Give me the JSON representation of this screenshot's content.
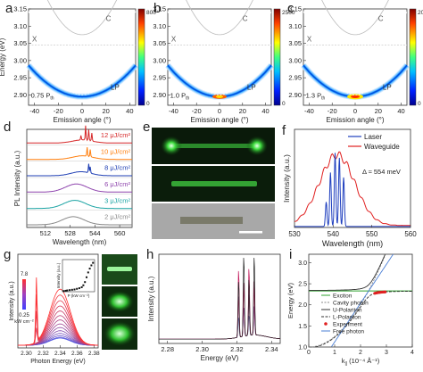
{
  "panel_labels": [
    "a",
    "b",
    "c",
    "d",
    "e",
    "f",
    "g",
    "h",
    "i"
  ],
  "chart_data": [
    {
      "panel": "a",
      "type": "heatmap",
      "xlabel": "Emission angle (°)",
      "ylabel": "Energy (eV)",
      "xticks": [
        "-40",
        "-20",
        "0",
        "20",
        "40"
      ],
      "yticks": [
        "2.90",
        "2.95",
        "3.00",
        "3.05",
        "3.10",
        "3.15"
      ],
      "xlim": [
        -45,
        45
      ],
      "ylim": [
        2.87,
        3.15
      ],
      "colorbar_ticks": [
        "800",
        "0"
      ],
      "colorbar_max": 800,
      "annotations": {
        "power": "0.75 P",
        "power_sub": "th",
        "C": "C",
        "X": "X",
        "LP": "LP"
      },
      "lp_curve": {
        "E0": 2.895,
        "curv": 4.5e-05
      }
    },
    {
      "panel": "b",
      "type": "heatmap",
      "xlabel": "Emission angle (°)",
      "ylabel": "",
      "xticks": [
        "-40",
        "-20",
        "0",
        "20",
        "40"
      ],
      "yticks": [
        "2.90",
        "2.95",
        "3.00",
        "3.05",
        "3.10",
        "3.15"
      ],
      "xlim": [
        -45,
        45
      ],
      "ylim": [
        2.87,
        3.15
      ],
      "colorbar_ticks": [
        "2500",
        "0"
      ],
      "colorbar_max": 2500,
      "annotations": {
        "power": "1.0 P",
        "power_sub": "th",
        "C": "C",
        "X": "X",
        "LP": "LP"
      },
      "lp_curve": {
        "E0": 2.895,
        "curv": 4.5e-05
      }
    },
    {
      "panel": "c",
      "type": "heatmap",
      "xlabel": "Emission angle (°)",
      "ylabel": "",
      "xticks": [
        "-40",
        "-20",
        "0",
        "20",
        "40"
      ],
      "yticks": [
        "2.90",
        "2.95",
        "3.00",
        "3.05",
        "3.10",
        "3.15"
      ],
      "xlim": [
        -45,
        45
      ],
      "ylim": [
        2.87,
        3.15
      ],
      "colorbar_ticks": [
        "20000",
        "0"
      ],
      "colorbar_max": 20000,
      "annotations": {
        "power": "1.3 P",
        "power_sub": "th",
        "C": "C",
        "X": "X",
        "LP": "LP"
      },
      "lp_curve": {
        "E0": 2.895,
        "curv": 4.5e-05
      }
    },
    {
      "panel": "d",
      "type": "line",
      "xlabel": "Wavelength (nm)",
      "ylabel": "PL Intensity (a.u.)",
      "xticks": [
        "512",
        "528",
        "544",
        "560"
      ],
      "xlim": [
        500,
        568
      ],
      "series": [
        {
          "name": "12 μJ/cm²",
          "color": "#d62728",
          "center": 536,
          "width": 9,
          "amp": 0.35,
          "spikes": [
            [
              538,
              1.6
            ],
            [
              540,
              1.2
            ],
            [
              542,
              0.9
            ],
            [
              535,
              0.5
            ]
          ]
        },
        {
          "name": "10 μJ/cm²",
          "color": "#ff7f0e",
          "center": 536,
          "width": 9,
          "amp": 0.4,
          "spikes": [
            [
              539,
              1.0
            ],
            [
              541,
              0.8
            ]
          ]
        },
        {
          "name": "8 μJ/cm²",
          "color": "#1f3fb4",
          "center": 535,
          "width": 9,
          "amp": 0.45,
          "spikes": [
            [
              540,
              1.0
            ],
            [
              541,
              0.7
            ]
          ]
        },
        {
          "name": "6 μJ/cm²",
          "color": "#8e44ad",
          "center": 532,
          "width": 10,
          "amp": 0.9,
          "spikes": []
        },
        {
          "name": "3 μJ/cm²",
          "color": "#1aa3a3",
          "center": 531,
          "width": 10,
          "amp": 0.9,
          "spikes": []
        },
        {
          "name": "2 μJ/cm²",
          "color": "#888888",
          "center": 530,
          "width": 10,
          "amp": 0.9,
          "spikes": []
        }
      ]
    },
    {
      "panel": "e",
      "type": "image",
      "description_free": true
    },
    {
      "panel": "f",
      "type": "line",
      "xlabel": "Wavelength (nm)",
      "ylabel": "Intensity (a.u.)",
      "xticks": [
        "530",
        "540",
        "550",
        "560"
      ],
      "xlim": [
        530,
        560
      ],
      "legend": [
        "Laser",
        "Waveguide"
      ],
      "legend_position": "top-right",
      "annotation": "Δ ≈ 554 meV",
      "series": [
        {
          "name": "Laser",
          "color": "#1f3fbf",
          "peaks": [
            [
              539.3,
              0.55
            ],
            [
              540.5,
              0.75
            ],
            [
              541.6,
              0.7
            ],
            [
              542.7,
              0.5
            ],
            [
              538.2,
              0.25
            ]
          ]
        },
        {
          "name": "Waveguide",
          "color": "#e02020",
          "center": 541,
          "width": 6.5,
          "amp": 0.72
        }
      ]
    },
    {
      "panel": "g",
      "type": "line",
      "xlabel": "Photon Energy (eV)",
      "ylabel": "Intensity (a.u.)",
      "xticks": [
        "2.30",
        "2.32",
        "2.34",
        "2.36",
        "2.38"
      ],
      "xlim": [
        2.29,
        2.385
      ],
      "colorbar_labels": [
        "7.8",
        "0.25",
        "kW cm⁻²"
      ],
      "inset": {
        "xlabel": "P (kW cm⁻²)",
        "ylabel": "Intensity (a.u.)",
        "xticks": [
          "0",
          "2",
          "4",
          "6",
          "8"
        ],
        "points": [
          [
            0.3,
            0.02
          ],
          [
            0.8,
            0.03
          ],
          [
            1.2,
            0.04
          ],
          [
            1.8,
            0.05
          ],
          [
            2.4,
            0.06
          ],
          [
            3.0,
            0.07
          ],
          [
            3.6,
            0.09
          ],
          [
            4.2,
            0.11
          ],
          [
            4.8,
            0.14
          ],
          [
            5.2,
            0.2
          ],
          [
            5.6,
            0.3
          ],
          [
            6.0,
            0.45
          ],
          [
            6.4,
            0.6
          ],
          [
            6.8,
            0.72
          ],
          [
            7.2,
            0.82
          ],
          [
            7.6,
            0.9
          ]
        ]
      }
    },
    {
      "panel": "h",
      "type": "line",
      "xlabel": "Energy (eV)",
      "ylabel": "Intensity (a.u.)",
      "xticks": [
        "2.28",
        "2.30",
        "2.32",
        "2.34"
      ],
      "xlim": [
        2.275,
        2.345
      ],
      "peaks": [
        2.321,
        2.324,
        2.327,
        2.33
      ]
    },
    {
      "panel": "i",
      "type": "line",
      "xlabel": "k",
      "xlabel_sub": "||",
      "xlabel_rest": " (10⁻⁴ Å⁻¹)",
      "ylabel": "Energy (eV)",
      "xticks": [
        "0",
        "1",
        "2",
        "3",
        "4"
      ],
      "yticks": [
        "1.0",
        "1.5",
        "2.0",
        "2.5",
        "3.0"
      ],
      "xlim": [
        0,
        4
      ],
      "ylim": [
        1.0,
        3.2
      ],
      "legend": [
        "Exciton",
        "Cavity photon",
        "U-Polariton",
        "L-Polariton",
        "Experiment",
        "Free photon"
      ],
      "legend_position": "center-right",
      "exciton_energy": 2.33,
      "colors": {
        "exciton": "#2ca02c",
        "cavity": "#888888",
        "up": "#333333",
        "lp": "#333333",
        "exp": "#e02020",
        "free": "#4a7fd6"
      }
    }
  ]
}
